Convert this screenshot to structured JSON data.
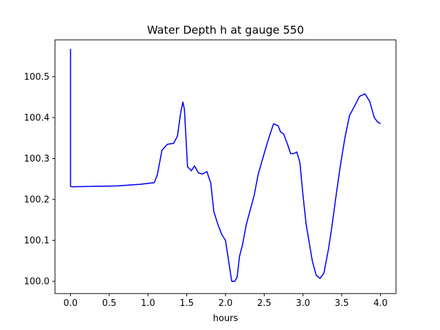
{
  "chart_data": {
    "type": "line",
    "title": "Water Depth h at gauge 550",
    "xlabel": "hours",
    "ylabel": "",
    "xlim": [
      -0.2,
      4.2
    ],
    "ylim": [
      99.97,
      100.59
    ],
    "xticks": [
      0.0,
      0.5,
      1.0,
      1.5,
      2.0,
      2.5,
      3.0,
      3.5,
      4.0
    ],
    "xtick_labels": [
      "0.0",
      "0.5",
      "1.0",
      "1.5",
      "2.0",
      "2.5",
      "3.0",
      "3.5",
      "4.0"
    ],
    "yticks": [
      100.0,
      100.1,
      100.2,
      100.3,
      100.4,
      100.5
    ],
    "ytick_labels": [
      "100.0",
      "100.1",
      "100.2",
      "100.3",
      "100.4",
      "100.5"
    ],
    "grid": false,
    "color": "#0000ff",
    "series": [
      {
        "x": [
          0.0,
          0.0,
          0.02,
          0.3,
          0.6,
          0.9,
          1.08,
          1.12,
          1.18,
          1.25,
          1.33,
          1.38,
          1.42,
          1.45,
          1.47,
          1.51,
          1.56,
          1.6,
          1.65,
          1.7,
          1.76,
          1.81,
          1.85,
          1.9,
          1.95,
          2.0,
          2.04,
          2.08,
          2.12,
          2.15,
          2.18,
          2.22,
          2.27,
          2.32,
          2.37,
          2.42,
          2.48,
          2.55,
          2.62,
          2.68,
          2.71,
          2.75,
          2.8,
          2.84,
          2.88,
          2.92,
          2.96,
          3.0,
          3.04,
          3.08,
          3.12,
          3.17,
          3.22,
          3.27,
          3.3,
          3.33,
          3.37,
          3.42,
          3.48,
          3.54,
          3.6,
          3.67,
          3.73,
          3.8,
          3.86,
          3.89,
          3.92,
          3.96,
          4.0
        ],
        "y": [
          100.568,
          100.232,
          100.231,
          100.232,
          100.233,
          100.237,
          100.241,
          100.26,
          100.32,
          100.335,
          100.337,
          100.355,
          100.41,
          100.438,
          100.42,
          100.28,
          100.27,
          100.282,
          100.265,
          100.262,
          100.268,
          100.24,
          100.17,
          100.14,
          100.115,
          100.1,
          100.05,
          100.0,
          100.0,
          100.01,
          100.06,
          100.09,
          100.14,
          100.175,
          100.21,
          100.26,
          100.3,
          100.345,
          100.385,
          100.38,
          100.365,
          100.36,
          100.335,
          100.312,
          100.312,
          100.316,
          100.29,
          100.21,
          100.14,
          100.095,
          100.05,
          100.015,
          100.007,
          100.02,
          100.05,
          100.08,
          100.13,
          100.2,
          100.28,
          100.35,
          100.405,
          100.43,
          100.452,
          100.458,
          100.44,
          100.42,
          100.4,
          100.39,
          100.385
        ]
      }
    ]
  }
}
